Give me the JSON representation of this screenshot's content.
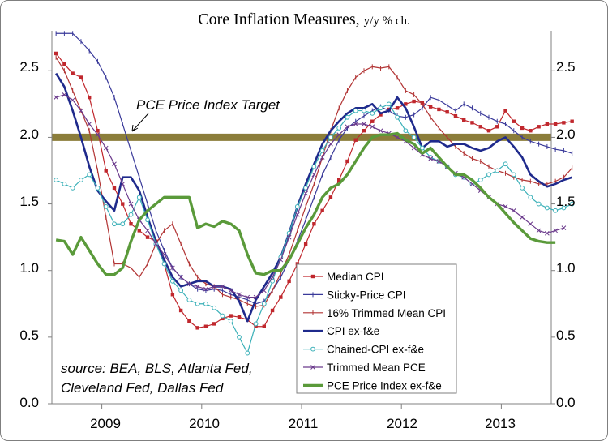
{
  "chart_data": {
    "type": "line",
    "title": "Core Inflation Measures",
    "subtitle": "y/y % ch.",
    "ylim": [
      0,
      2.8
    ],
    "y_ticks": [
      "0.0",
      "0.5",
      "1.0",
      "1.5",
      "2.0",
      "2.5"
    ],
    "right_axis": true,
    "x_year_labels": [
      "2009",
      "2010",
      "2011",
      "2012",
      "2013"
    ],
    "x_start": "2008-07",
    "x_end": "2013-06",
    "grid": false,
    "legend_position": "bottom-right",
    "target": {
      "value": 2.0,
      "label": "PCE Price Index Target",
      "color": "#8b7d3a"
    },
    "source_note": [
      "source: BEA, BLS, Atlanta Fed,",
      "Cleveland Fed, Dallas Fed"
    ],
    "series": [
      {
        "name": "Median CPI",
        "color": "#c0272d",
        "marker": "square",
        "width": 1.2,
        "start": "2008-07",
        "values": [
          2.63,
          2.55,
          2.48,
          2.45,
          2.3,
          2.05,
          1.75,
          1.62,
          1.5,
          1.35,
          1.3,
          1.25,
          1.22,
          1.05,
          0.82,
          0.7,
          0.62,
          0.57,
          0.58,
          0.6,
          0.64,
          0.66,
          0.65,
          0.63,
          0.58,
          0.58,
          0.7,
          0.8,
          0.92,
          1.05,
          1.2,
          1.35,
          1.45,
          1.55,
          1.68,
          1.82,
          1.98,
          2.05,
          2.12,
          2.17,
          2.21,
          2.22,
          2.25,
          2.27,
          2.26,
          2.23,
          2.21,
          2.19,
          2.16,
          2.13,
          2.11,
          2.08,
          2.05,
          2.08,
          2.2,
          2.12,
          2.07,
          2.05,
          2.08,
          2.1,
          2.1,
          2.11,
          2.12
        ]
      },
      {
        "name": "Sticky-Price CPI",
        "color": "#3a3a9a",
        "marker": "dash",
        "width": 1.2,
        "start": "2008-07",
        "values": [
          2.78,
          2.78,
          2.78,
          2.72,
          2.65,
          2.57,
          2.45,
          2.3,
          2.1,
          1.9,
          1.7,
          1.5,
          1.3,
          1.15,
          1.02,
          0.95,
          0.9,
          0.86,
          0.85,
          0.86,
          0.85,
          0.82,
          0.8,
          0.78,
          0.75,
          0.77,
          0.85,
          0.95,
          1.08,
          1.22,
          1.38,
          1.55,
          1.72,
          1.85,
          1.98,
          2.07,
          2.12,
          2.16,
          2.2,
          2.23,
          2.2,
          2.16,
          2.15,
          2.17,
          2.22,
          2.3,
          2.28,
          2.24,
          2.2,
          2.25,
          2.22,
          2.18,
          2.15,
          2.12,
          2.1,
          2.05,
          2.0,
          1.97,
          1.95,
          1.93,
          1.91,
          1.9,
          1.88
        ]
      },
      {
        "name": "16% Trimmed Mean CPI",
        "color": "#b23434",
        "marker": "dash",
        "width": 1.2,
        "start": "2008-07",
        "values": [
          2.6,
          2.5,
          2.35,
          2.2,
          2.05,
          1.75,
          1.4,
          1.05,
          1.05,
          1.02,
          0.95,
          1.05,
          1.2,
          1.3,
          1.35,
          1.2,
          1.05,
          0.95,
          0.9,
          0.88,
          0.82,
          0.8,
          0.78,
          0.75,
          0.73,
          0.74,
          0.85,
          0.98,
          1.12,
          1.3,
          1.48,
          1.65,
          1.85,
          2.05,
          2.22,
          2.35,
          2.45,
          2.5,
          2.53,
          2.52,
          2.53,
          2.45,
          2.35,
          2.32,
          2.25,
          2.15,
          2.07,
          2.0,
          1.93,
          1.88,
          1.84,
          1.82,
          1.78,
          1.75,
          1.73,
          1.7,
          1.68,
          1.67,
          1.65,
          1.65,
          1.67,
          1.7,
          1.77
        ]
      },
      {
        "name": "CPI ex-f&e",
        "color": "#1f2a8c",
        "marker": "none",
        "width": 2.6,
        "start": "2008-07",
        "values": [
          2.48,
          2.38,
          2.2,
          2.0,
          1.78,
          1.6,
          1.52,
          1.45,
          1.7,
          1.7,
          1.6,
          1.4,
          1.22,
          1.08,
          0.95,
          0.88,
          0.9,
          0.92,
          0.92,
          0.88,
          0.88,
          0.86,
          0.77,
          0.62,
          0.78,
          0.88,
          0.98,
          1.1,
          1.28,
          1.48,
          1.65,
          1.8,
          1.95,
          2.05,
          2.12,
          2.18,
          2.22,
          2.22,
          2.25,
          2.18,
          2.2,
          2.3,
          2.22,
          2.08,
          1.92,
          1.97,
          1.97,
          1.93,
          1.95,
          1.95,
          1.92,
          1.9,
          1.92,
          1.97,
          2.0,
          1.93,
          1.85,
          1.72,
          1.67,
          1.63,
          1.65,
          1.68,
          1.7
        ]
      },
      {
        "name": "Chained-CPI ex-f&e",
        "color": "#3ab0b8",
        "marker": "circle",
        "width": 1.2,
        "start": "2008-07",
        "values": [
          1.68,
          1.65,
          1.62,
          1.68,
          1.72,
          1.62,
          1.48,
          1.35,
          1.35,
          1.42,
          1.55,
          1.38,
          1.2,
          1.05,
          0.92,
          0.85,
          0.78,
          0.75,
          0.75,
          0.72,
          0.66,
          0.62,
          0.5,
          0.38,
          0.6,
          0.75,
          0.92,
          1.1,
          1.28,
          1.48,
          1.62,
          1.78,
          1.9,
          2.0,
          2.07,
          2.15,
          2.2,
          2.2,
          2.18,
          2.22,
          2.25,
          2.15,
          2.05,
          2.0,
          1.92,
          1.85,
          1.82,
          1.78,
          1.72,
          1.7,
          1.65,
          1.68,
          1.72,
          1.75,
          1.8,
          1.72,
          1.62,
          1.55,
          1.5,
          1.47,
          1.45,
          1.47,
          1.5
        ]
      },
      {
        "name": "Trimmed Mean PCE",
        "color": "#6b3a8c",
        "marker": "cross",
        "width": 1.2,
        "start": "2008-07",
        "values": [
          2.3,
          2.32,
          2.28,
          2.2,
          2.1,
          2.02,
          1.92,
          1.8,
          1.65,
          1.5,
          1.38,
          1.3,
          1.2,
          1.12,
          1.02,
          0.95,
          0.9,
          0.88,
          0.86,
          0.88,
          0.88,
          0.85,
          0.82,
          0.8,
          0.8,
          0.85,
          0.95,
          1.08,
          1.25,
          1.42,
          1.58,
          1.72,
          1.85,
          1.95,
          2.02,
          2.08,
          2.1,
          2.1,
          2.08,
          2.05,
          2.03,
          2.0,
          1.97,
          1.92,
          1.87,
          1.84,
          1.82,
          1.78,
          1.73,
          1.7,
          1.65,
          1.6,
          1.55,
          1.5,
          1.48,
          1.45,
          1.4,
          1.35,
          1.3,
          1.28,
          1.3,
          1.32
        ]
      },
      {
        "name": "PCE Price Index ex-f&e",
        "color": "#5a9a3a",
        "marker": "none",
        "width": 3.4,
        "start": "2008-07",
        "values": [
          1.23,
          1.22,
          1.12,
          1.25,
          1.15,
          1.05,
          0.97,
          0.97,
          1.02,
          1.22,
          1.38,
          1.45,
          1.5,
          1.55,
          1.55,
          1.55,
          1.55,
          1.32,
          1.35,
          1.33,
          1.37,
          1.35,
          1.3,
          1.12,
          0.98,
          0.97,
          1.0,
          1.0,
          1.08,
          1.2,
          1.32,
          1.42,
          1.55,
          1.62,
          1.65,
          1.72,
          1.82,
          1.92,
          2.0,
          2.02,
          2.02,
          2.03,
          1.98,
          1.95,
          1.88,
          1.92,
          1.85,
          1.78,
          1.72,
          1.72,
          1.68,
          1.62,
          1.55,
          1.5,
          1.43,
          1.36,
          1.3,
          1.24,
          1.22,
          1.21,
          1.21
        ]
      }
    ]
  }
}
